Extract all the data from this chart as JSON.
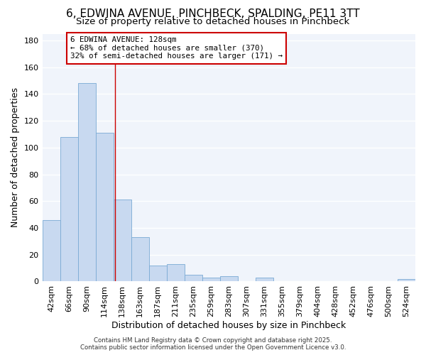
{
  "title": "6, EDWINA AVENUE, PINCHBECK, SPALDING, PE11 3TT",
  "subtitle": "Size of property relative to detached houses in Pinchbeck",
  "xlabel": "Distribution of detached houses by size in Pinchbeck",
  "ylabel_text": "Number of detached properties",
  "categories": [
    "42sqm",
    "66sqm",
    "90sqm",
    "114sqm",
    "138sqm",
    "163sqm",
    "187sqm",
    "211sqm",
    "235sqm",
    "259sqm",
    "283sqm",
    "307sqm",
    "331sqm",
    "355sqm",
    "379sqm",
    "404sqm",
    "428sqm",
    "452sqm",
    "476sqm",
    "500sqm",
    "524sqm"
  ],
  "values": [
    46,
    108,
    148,
    111,
    61,
    33,
    12,
    13,
    5,
    3,
    4,
    0,
    3,
    0,
    0,
    0,
    0,
    0,
    0,
    0,
    2
  ],
  "bar_color": "#c8d9f0",
  "bar_edgecolor": "#7aaad4",
  "bg_color": "#ffffff",
  "plot_bg_color": "#f0f4fb",
  "grid_color": "#ffffff",
  "annotation_text": "6 EDWINA AVENUE: 128sqm\n← 68% of detached houses are smaller (370)\n32% of semi-detached houses are larger (171) →",
  "annotation_box_color": "#ffffff",
  "annotation_box_edgecolor": "#cc0000",
  "vline_color": "#cc0000",
  "ylim": [
    0,
    185
  ],
  "yticks": [
    0,
    20,
    40,
    60,
    80,
    100,
    120,
    140,
    160,
    180
  ],
  "title_fontsize": 11,
  "subtitle_fontsize": 9.5,
  "tick_fontsize": 8,
  "ylabel_fontsize": 9,
  "xlabel_fontsize": 9,
  "footer": "Contains HM Land Registry data © Crown copyright and database right 2025.\nContains public sector information licensed under the Open Government Licence v3.0."
}
